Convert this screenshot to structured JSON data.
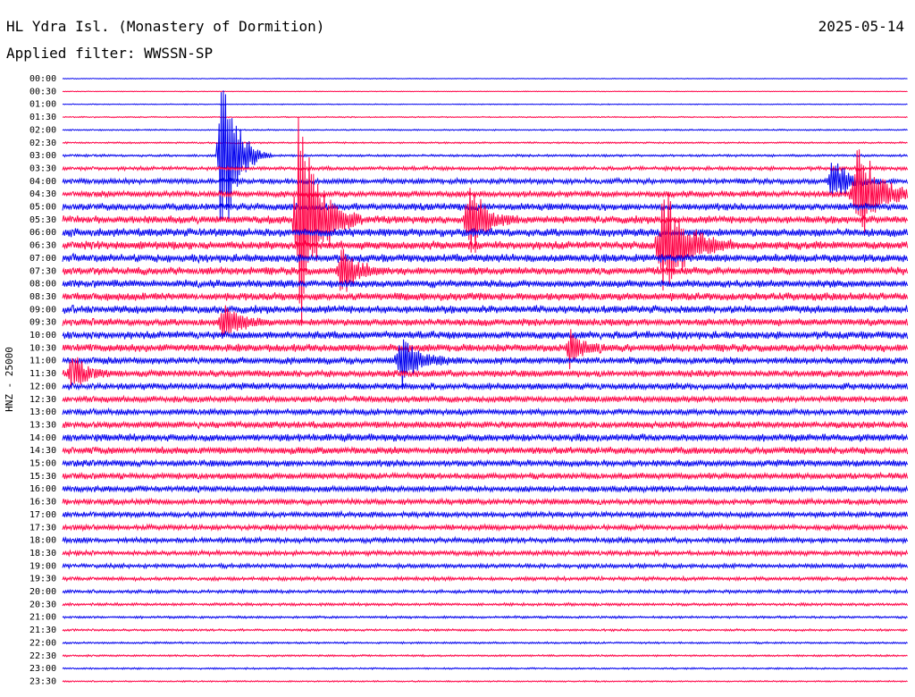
{
  "header": {
    "station": "HL Ydra Isl. (Monastery of Dormition)",
    "date": "2025-05-14",
    "filter": "Applied filter: WWSSN-SP"
  },
  "chart_data": {
    "type": "line",
    "title": "HL Ydra Isl. (Monastery of Dormition)",
    "ylabel": "HNZ - 25000",
    "colors": [
      "#0000ee",
      "#ff0044"
    ],
    "rows": [
      "00:00",
      "00:30",
      "01:00",
      "01:30",
      "02:00",
      "02:30",
      "03:00",
      "03:30",
      "04:00",
      "04:30",
      "05:00",
      "05:30",
      "06:00",
      "06:30",
      "07:00",
      "07:30",
      "08:00",
      "08:30",
      "09:00",
      "09:30",
      "10:00",
      "10:30",
      "11:00",
      "11:30",
      "12:00",
      "12:30",
      "13:00",
      "13:30",
      "14:00",
      "14:30",
      "15:00",
      "15:30",
      "16:00",
      "16:30",
      "17:00",
      "17:30",
      "18:00",
      "18:30",
      "19:00",
      "19:30",
      "20:00",
      "20:30",
      "21:00",
      "21:30",
      "22:00",
      "22:30",
      "23:00",
      "23:30"
    ],
    "noise_levels": [
      0.3,
      0.3,
      0.4,
      0.5,
      0.6,
      0.7,
      1.0,
      1.6,
      2.2,
      2.6,
      3.0,
      3.2,
      3.5,
      3.5,
      3.4,
      3.2,
      3.2,
      3.3,
      3.3,
      3.0,
      3.3,
      3.2,
      3.0,
      2.8,
      2.8,
      2.6,
      2.6,
      2.8,
      3.2,
      3.0,
      2.8,
      2.6,
      2.6,
      2.4,
      2.3,
      2.3,
      2.2,
      2.0,
      1.8,
      1.6,
      1.4,
      1.2,
      1.0,
      0.9,
      0.8,
      0.8,
      0.7,
      0.6
    ],
    "events": [
      {
        "row": 6,
        "x": 0.188,
        "amp": 140,
        "width": 0.02
      },
      {
        "row": 11,
        "x": 0.28,
        "amp": 180,
        "width": 0.025
      },
      {
        "row": 11,
        "x": 0.48,
        "amp": 60,
        "width": 0.02
      },
      {
        "row": 13,
        "x": 0.71,
        "amp": 90,
        "width": 0.03
      },
      {
        "row": 15,
        "x": 0.33,
        "amp": 40,
        "width": 0.02
      },
      {
        "row": 19,
        "x": 0.19,
        "amp": 30,
        "width": 0.02
      },
      {
        "row": 21,
        "x": 0.6,
        "amp": 25,
        "width": 0.02
      },
      {
        "row": 22,
        "x": 0.4,
        "amp": 35,
        "width": 0.025
      },
      {
        "row": 23,
        "x": 0.01,
        "amp": 30,
        "width": 0.02
      },
      {
        "row": 9,
        "x": 0.94,
        "amp": 70,
        "width": 0.03
      },
      {
        "row": 8,
        "x": 0.91,
        "amp": 40,
        "width": 0.02
      }
    ]
  }
}
